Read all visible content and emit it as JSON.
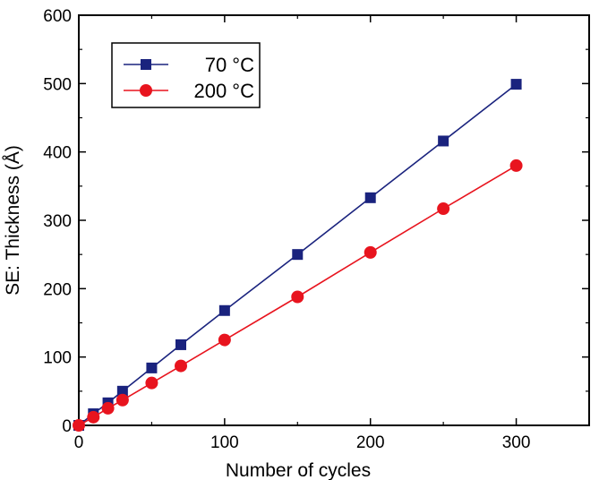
{
  "chart_data": {
    "type": "line",
    "xlabel": "Number of cycles",
    "ylabel": "SE: Thickness (Å)",
    "xlim": [
      0,
      350
    ],
    "ylim": [
      0,
      600
    ],
    "xticks": [
      0,
      100,
      200,
      300
    ],
    "yticks": [
      0,
      100,
      200,
      300,
      400,
      500,
      600
    ],
    "grid": false,
    "legend_position": "top-left",
    "series": [
      {
        "name": "70 °C",
        "color": "#1a237e",
        "marker": "square",
        "x": [
          0,
          10,
          20,
          30,
          50,
          70,
          100,
          150,
          200,
          250,
          300
        ],
        "y": [
          0,
          17,
          33,
          50,
          84,
          118,
          168,
          250,
          333,
          416,
          499
        ]
      },
      {
        "name": "200 °C",
        "color": "#e8141e",
        "marker": "circle",
        "x": [
          0,
          10,
          20,
          30,
          50,
          70,
          100,
          150,
          200,
          250,
          300
        ],
        "y": [
          0,
          12,
          25,
          37,
          62,
          87,
          125,
          188,
          253,
          317,
          380
        ]
      }
    ]
  }
}
